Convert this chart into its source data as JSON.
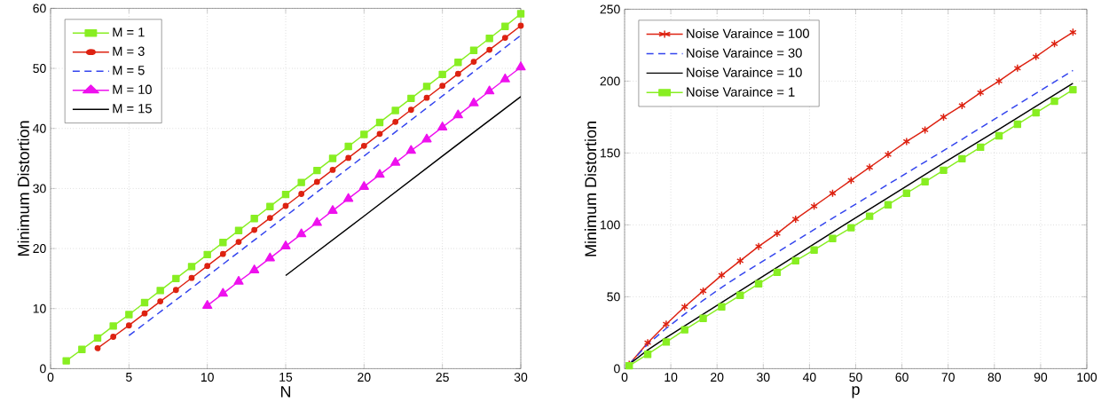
{
  "chart_data": [
    {
      "type": "line",
      "xlabel": "N",
      "ylabel": "Minimum Distortion",
      "xlim": [
        0,
        30
      ],
      "ylim": [
        0,
        60
      ],
      "xticks": [
        0,
        5,
        10,
        15,
        20,
        25,
        30
      ],
      "yticks": [
        0,
        10,
        20,
        30,
        40,
        50,
        60
      ],
      "grid": true,
      "legend": "top left",
      "series": [
        {
          "name": "M = 1",
          "color": "#88ee22",
          "marker": "square",
          "line_style": "solid",
          "x": [
            1,
            2,
            3,
            4,
            5,
            6,
            7,
            8,
            9,
            10,
            11,
            12,
            13,
            14,
            15,
            16,
            17,
            18,
            19,
            20,
            21,
            22,
            23,
            24,
            25,
            26,
            27,
            28,
            29,
            30
          ],
          "values": [
            1.3,
            3.2,
            5.1,
            7.1,
            9.0,
            11.0,
            13.0,
            15.0,
            17.0,
            19.0,
            21.0,
            23.0,
            25.0,
            27.0,
            29.0,
            31.0,
            33.0,
            35.0,
            37.0,
            39.0,
            41.0,
            43.0,
            45.0,
            47.0,
            49.0,
            51.0,
            53.0,
            55.0,
            57.0,
            59.1
          ]
        },
        {
          "name": "M = 3",
          "color": "#dd2211",
          "marker": "circle",
          "line_style": "solid",
          "x": [
            3,
            4,
            5,
            6,
            7,
            8,
            9,
            10,
            11,
            12,
            13,
            14,
            15,
            16,
            17,
            18,
            19,
            20,
            21,
            22,
            23,
            24,
            25,
            26,
            27,
            28,
            29,
            30
          ],
          "values": [
            3.4,
            5.3,
            7.2,
            9.2,
            11.2,
            13.1,
            15.1,
            17.1,
            19.1,
            21.1,
            23.1,
            25.1,
            27.1,
            29.1,
            31.1,
            33.1,
            35.1,
            37.1,
            39.1,
            41.1,
            43.1,
            45.1,
            47.1,
            49.1,
            51.1,
            53.1,
            55.1,
            57.1
          ]
        },
        {
          "name": "M = 5",
          "color": "#3344ee",
          "marker": "none",
          "line_style": "dashed",
          "x": [
            5,
            10,
            15,
            20,
            25,
            30
          ],
          "values": [
            5.5,
            15.4,
            25.4,
            35.4,
            45.4,
            55.5
          ]
        },
        {
          "name": "M = 10",
          "color": "#ee11ee",
          "marker": "triangle",
          "line_style": "solid",
          "x": [
            10,
            11,
            12,
            13,
            14,
            15,
            16,
            17,
            18,
            19,
            20,
            21,
            22,
            23,
            24,
            25,
            26,
            27,
            28,
            29,
            30
          ],
          "values": [
            10.5,
            12.5,
            14.5,
            16.4,
            18.4,
            20.4,
            22.4,
            24.3,
            26.3,
            28.3,
            30.3,
            32.3,
            34.3,
            36.3,
            38.2,
            40.2,
            42.2,
            44.2,
            46.2,
            48.2,
            50.2
          ]
        },
        {
          "name": "M = 15",
          "color": "#000000",
          "marker": "none",
          "line_style": "solid",
          "x": [
            15,
            20,
            25,
            30
          ],
          "values": [
            15.5,
            25.4,
            35.4,
            45.3
          ]
        }
      ]
    },
    {
      "type": "line",
      "xlabel": "p",
      "ylabel": "Minimum Distortion",
      "xlim": [
        0,
        100
      ],
      "ylim": [
        0,
        250
      ],
      "xticks": [
        0,
        10,
        20,
        30,
        40,
        50,
        60,
        70,
        80,
        90,
        100
      ],
      "yticks": [
        0,
        50,
        100,
        150,
        200,
        250
      ],
      "grid": true,
      "legend": "top left",
      "series": [
        {
          "name": "Noise Varaince = 100",
          "color": "#dd2211",
          "marker": "cross",
          "line_style": "solid",
          "x": [
            1,
            5,
            9,
            13,
            17,
            21,
            25,
            29,
            33,
            37,
            41,
            45,
            49,
            53,
            57,
            61,
            65,
            69,
            73,
            77,
            81,
            85,
            89,
            93,
            97
          ],
          "values": [
            3,
            18,
            31,
            43,
            54,
            65,
            75,
            85,
            94,
            104,
            113,
            122,
            131,
            140,
            149,
            158,
            166,
            175,
            183,
            192,
            200,
            209,
            217,
            226,
            234
          ]
        },
        {
          "name": "Noise Varaince = 30",
          "color": "#3344ee",
          "marker": "none",
          "line_style": "dashed",
          "x": [
            1,
            5,
            9,
            13,
            17,
            21,
            25,
            29,
            49,
            61,
            73,
            85,
            97
          ],
          "values": [
            3,
            17,
            28,
            38,
            47.5,
            56.5,
            65,
            73,
            112.5,
            136,
            159.5,
            183.5,
            207.4
          ]
        },
        {
          "name": "Noise Varaince = 10",
          "color": "#000000",
          "marker": "none",
          "line_style": "solid",
          "x": [
            1,
            5,
            9,
            29,
            49,
            69,
            81,
            97
          ],
          "values": [
            3,
            13,
            21.6,
            62.3,
            103,
            143,
            166.5,
            198.5
          ]
        },
        {
          "name": "Noise Varaince = 1",
          "color": "#88ee22",
          "marker": "square",
          "line_style": "solid",
          "x": [
            1,
            5,
            9,
            13,
            17,
            21,
            25,
            29,
            33,
            37,
            41,
            45,
            49,
            53,
            57,
            61,
            65,
            69,
            73,
            77,
            81,
            85,
            89,
            93,
            97
          ],
          "values": [
            2,
            10,
            18.5,
            27,
            35,
            43,
            51,
            59,
            67,
            75,
            82.5,
            90.5,
            98,
            106,
            114,
            122,
            130,
            138,
            146,
            154,
            162,
            170,
            178,
            186,
            194
          ]
        }
      ]
    }
  ]
}
